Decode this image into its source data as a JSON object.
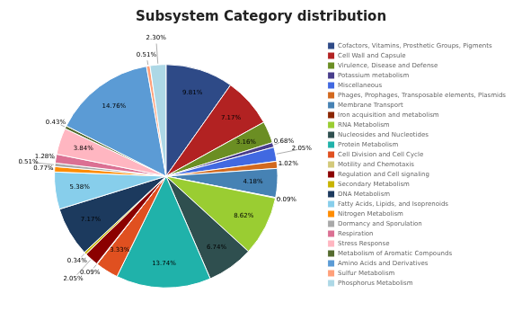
{
  "chart_data": {
    "type": "pie",
    "title": "Subsystem Category distribution",
    "categories": [
      "Cofactors, Vitamins, Prosthetic Groups, Pigments",
      "Cell Wall and Capsule",
      "Virulence, Disease and Defense",
      "Potassium metabolism",
      "Miscellaneous",
      "Phages, Prophages, Transposable elements, Plasmids",
      "Membrane Transport",
      "Iron acquisition and metabolism",
      "RNA Metabolism",
      "Nucleosides and Nucleotides",
      "Protein Metabolism",
      "Cell Division and Cell Cycle",
      "Motility and Chemotaxis",
      "Regulation and Cell signaling",
      "Secondary Metabolism",
      "DNA Metabolism",
      "Fatty Acids, Lipids, and Isoprenoids",
      "Nitrogen Metabolism",
      "Dormancy and Sporulation",
      "Respiration",
      "Stress Response",
      "Metabolism of Aromatic Compounds",
      "Amino Acids and Derivatives",
      "Sulfur Metabolism",
      "Phosphorus Metabolism"
    ],
    "values": [
      9.81,
      7.17,
      3.16,
      0.68,
      2.05,
      1.02,
      4.18,
      0.09,
      8.62,
      6.74,
      13.74,
      3.33,
      0.09,
      2.05,
      0.34,
      7.17,
      5.38,
      0.77,
      0.51,
      1.28,
      3.84,
      0.43,
      14.76,
      0.51,
      2.3
    ],
    "value_labels": [
      "9.81%",
      "7.17%",
      "3.16%",
      "0.68%",
      "2.05%",
      "1.02%",
      "4.18%",
      "0.09%",
      "8.62%",
      "6.74%",
      "13.74%",
      "3.33%",
      "0.09%",
      "2.05%",
      "0.34%",
      "7.17%",
      "5.38%",
      "0.77%",
      "0.51%",
      "1.28%",
      "3.84%",
      "0.43%",
      "14.76%",
      "0.51%",
      "2.30%"
    ],
    "colors": [
      "#2E4A87",
      "#B22222",
      "#6B8E23",
      "#483D8B",
      "#4169E1",
      "#D2691E",
      "#4682B4",
      "#8B2500",
      "#9ACD32",
      "#2F4F4F",
      "#20B2AA",
      "#E05020",
      "#D3C97A",
      "#8B0000",
      "#C8B400",
      "#1C3A5E",
      "#87CEEB",
      "#FF8C00",
      "#A9A9A9",
      "#DB7093",
      "#FFB6C1",
      "#556B2F",
      "#5B9BD5",
      "#FFA07A",
      "#ADD8E6"
    ],
    "data_labels": true,
    "legend": "right"
  }
}
